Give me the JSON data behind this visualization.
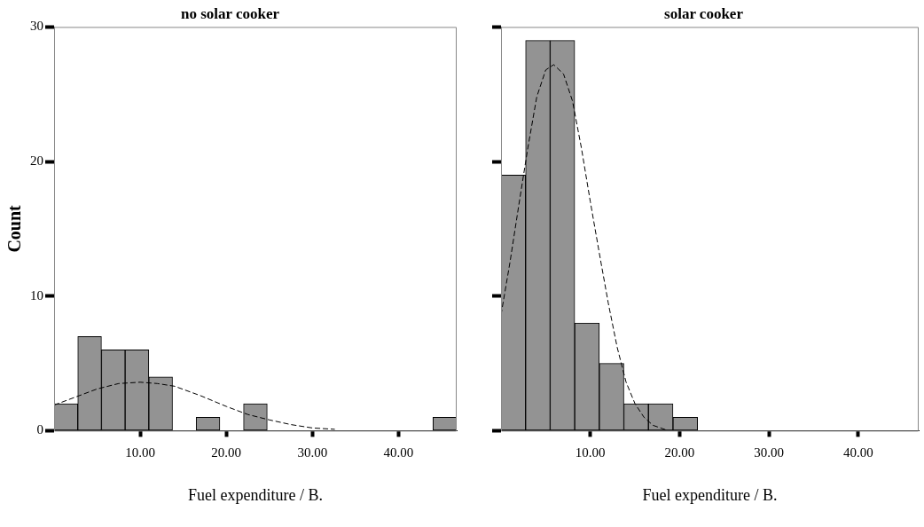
{
  "chart_data": [
    {
      "type": "histogram",
      "title": "no solar cooker",
      "xlabel": "Fuel expenditure / B.",
      "ylabel": "Count",
      "xlim": [
        0,
        46.75
      ],
      "xticks": [
        {
          "value": 10,
          "label": "10.00"
        },
        {
          "value": 20,
          "label": "20.00"
        },
        {
          "value": 30,
          "label": "30.00"
        },
        {
          "value": 40,
          "label": "40.00"
        }
      ],
      "ylim": [
        0,
        30
      ],
      "yticks": [
        0,
        10,
        20,
        30
      ],
      "series": [
        {
          "type": "histogram",
          "color": "#939393",
          "bins": [
            0,
            2.75,
            5.5,
            8.25,
            11,
            13.75,
            16.5,
            19.25,
            22,
            24.75,
            27.5,
            30.25,
            33,
            35.75,
            38.5,
            41.25,
            44,
            46.75
          ],
          "values": [
            2,
            7,
            6,
            6,
            4,
            0,
            1,
            0,
            2,
            0,
            0,
            0,
            0,
            0,
            0,
            0,
            1
          ]
        },
        {
          "type": "line",
          "color": "#000000",
          "line_style": "dashed",
          "x": [
            0,
            2.5,
            5,
            7.5,
            10,
            12,
            14,
            17,
            20,
            22.5,
            25,
            27.5,
            30,
            32.6
          ],
          "values": [
            1.9,
            2.5,
            3.1,
            3.5,
            3.6,
            3.5,
            3.3,
            2.6,
            1.8,
            1.2,
            0.8,
            0.45,
            0.2,
            0.1
          ]
        }
      ]
    },
    {
      "type": "histogram",
      "title": "solar cooker",
      "xlabel": "Fuel expenditure / B.",
      "tick_labels": "x",
      "xlim": [
        0,
        46.75
      ],
      "xticks": [
        {
          "value": 10,
          "label": "10.00"
        },
        {
          "value": 20,
          "label": "20.00"
        },
        {
          "value": 30,
          "label": "30.00"
        },
        {
          "value": 40,
          "label": "40.00"
        }
      ],
      "ylim": [
        0,
        30
      ],
      "yticks": [
        {
          "value": 0,
          "label": null
        },
        {
          "value": 10,
          "label": null
        },
        {
          "value": 20,
          "label": null
        },
        {
          "value": 30,
          "label": null
        }
      ],
      "series": [
        {
          "type": "histogram",
          "color": "#939393",
          "bins": [
            0,
            2.75,
            5.5,
            8.25,
            11,
            13.75,
            16.5,
            19.25,
            22,
            24.75,
            27.5,
            30.25,
            33,
            35.75,
            38.5,
            41.25,
            44,
            46.75
          ],
          "values": [
            19,
            29,
            29,
            8,
            5,
            2,
            2,
            1,
            0,
            0,
            0,
            0,
            0,
            0,
            0,
            0,
            0
          ]
        },
        {
          "type": "line",
          "color": "#000000",
          "line_style": "dashed",
          "x": [
            0,
            1,
            2,
            3,
            4,
            5,
            5.9,
            7,
            8,
            9,
            10,
            11,
            12,
            13,
            14,
            15,
            16,
            17,
            18.5
          ],
          "values": [
            8.6,
            12.5,
            16.8,
            21,
            24.8,
            26.8,
            27.2,
            26.5,
            24.5,
            21,
            17,
            13.2,
            9.5,
            6.2,
            3.6,
            2,
            1,
            0.4,
            0.05
          ]
        }
      ]
    }
  ]
}
